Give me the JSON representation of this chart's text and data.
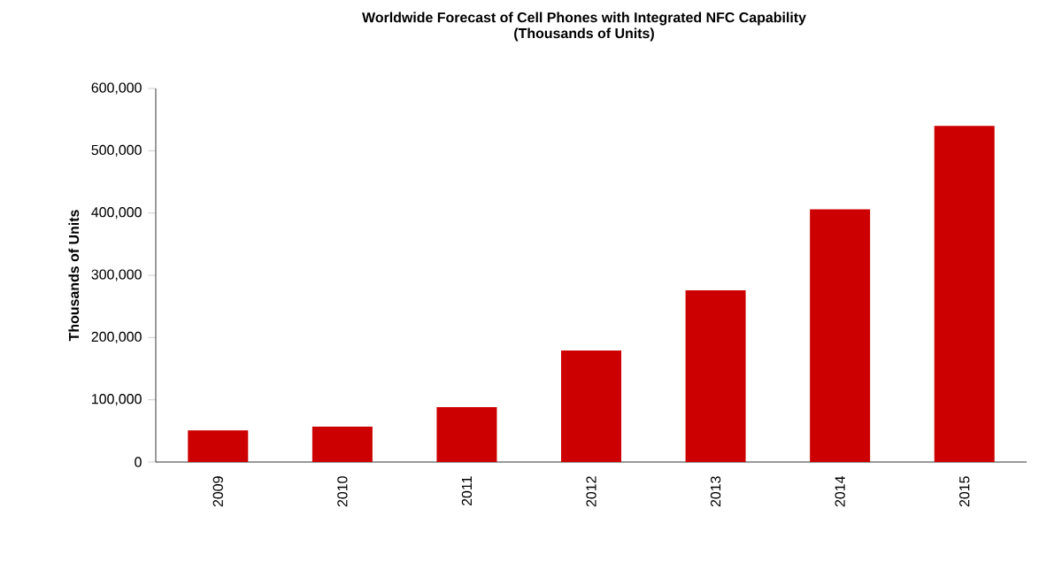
{
  "chart_data": {
    "type": "bar",
    "title": "Worldwide Forecast of Cell Phones with Integrated NFC Capability",
    "subtitle": "(Thousands of Units)",
    "ylabel": "Thousands of Units",
    "categories": [
      "2009",
      "2010",
      "2011",
      "2012",
      "2013",
      "2014",
      "2015"
    ],
    "values": [
      51000,
      57000,
      88000,
      179000,
      276000,
      406000,
      540000
    ],
    "color": "#cc0000",
    "ylim": [
      0,
      600000
    ],
    "yticks": [
      {
        "value": 0,
        "label": "0"
      },
      {
        "value": 100000,
        "label": "100,000"
      },
      {
        "value": 200000,
        "label": "200,000"
      },
      {
        "value": 300000,
        "label": "300,000"
      },
      {
        "value": 400000,
        "label": "400,000"
      },
      {
        "value": 500000,
        "label": "500,000"
      },
      {
        "value": 600000,
        "label": "600,000"
      }
    ]
  }
}
